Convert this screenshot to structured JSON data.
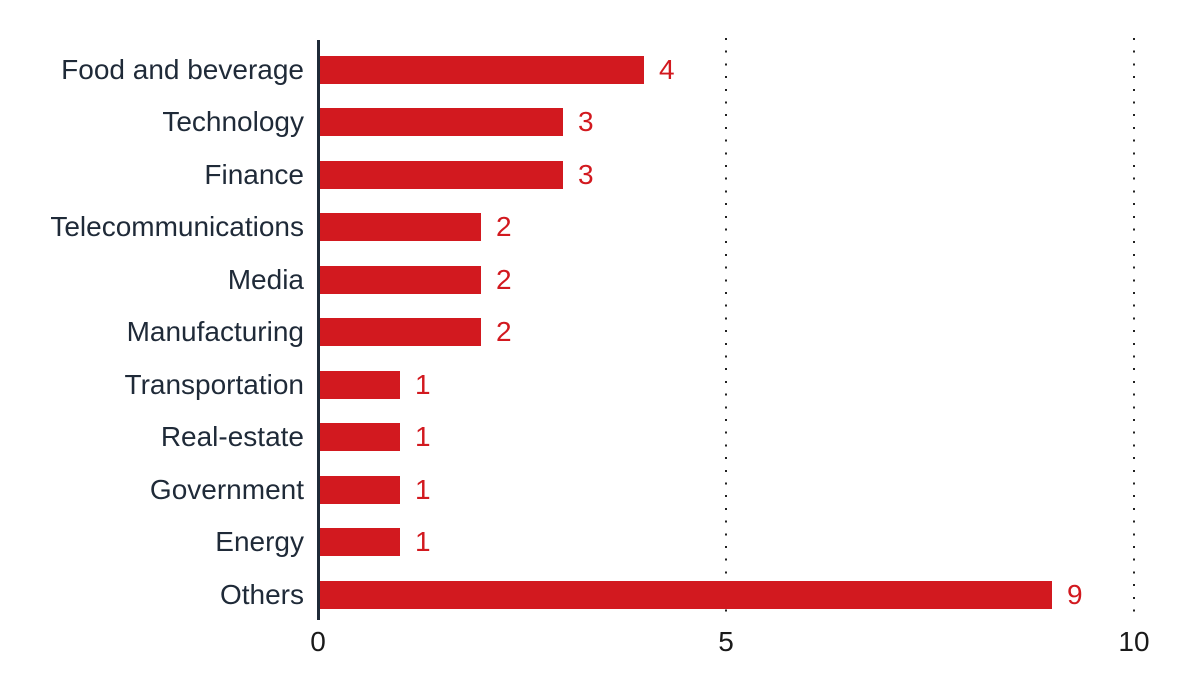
{
  "chart_data": {
    "type": "bar",
    "orientation": "horizontal",
    "title": "",
    "xlabel": "",
    "ylabel": "",
    "categories": [
      "Food and beverage",
      "Technology",
      "Finance",
      "Telecommunications",
      "Media",
      "Manufacturing",
      "Transportation",
      "Real-estate",
      "Government",
      "Energy",
      "Others"
    ],
    "values": [
      4,
      3,
      3,
      2,
      2,
      2,
      1,
      1,
      1,
      1,
      9
    ],
    "value_labels": [
      "4",
      "3",
      "3",
      "2",
      "2",
      "2",
      "1",
      "1",
      "1",
      "1",
      "9"
    ],
    "xlim": [
      0,
      10
    ],
    "x_ticks": [
      0,
      5,
      10
    ],
    "x_tick_labels": [
      "0",
      "5",
      "10"
    ],
    "gridlines": {
      "style": "dotted",
      "at": [
        5,
        10
      ]
    },
    "legend": "none",
    "colors": {
      "bar": "#d2191f",
      "value_label": "#d2191f",
      "category_label": "#1f2a38",
      "axis_line": "#1f2a38",
      "tick_label": "#1a1a1a",
      "gridline": "#222222",
      "background": "#ffffff"
    }
  }
}
